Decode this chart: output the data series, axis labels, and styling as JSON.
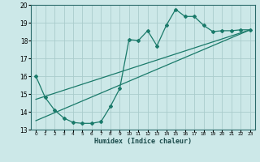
{
  "xlabel": "Humidex (Indice chaleur)",
  "ylabel": "",
  "xlim": [
    -0.5,
    23.5
  ],
  "ylim": [
    13,
    20
  ],
  "yticks": [
    13,
    14,
    15,
    16,
    17,
    18,
    19,
    20
  ],
  "xticks": [
    0,
    1,
    2,
    3,
    4,
    5,
    6,
    7,
    8,
    9,
    10,
    11,
    12,
    13,
    14,
    15,
    16,
    17,
    18,
    19,
    20,
    21,
    22,
    23
  ],
  "background_color": "#cce8e8",
  "grid_color": "#aacccc",
  "line_color": "#1a7a6a",
  "line1_x": [
    0,
    1,
    2,
    3,
    4,
    5,
    6,
    7,
    8,
    9,
    10,
    11,
    12,
    13,
    14,
    15,
    16,
    17,
    18,
    19,
    20,
    21,
    22,
    23
  ],
  "line1_y": [
    16.0,
    14.8,
    14.1,
    13.65,
    13.4,
    13.35,
    13.35,
    13.45,
    14.3,
    15.3,
    18.05,
    18.0,
    18.55,
    17.7,
    18.85,
    19.75,
    19.35,
    19.35,
    18.85,
    18.5,
    18.55,
    18.55,
    18.6,
    18.6
  ],
  "line2_x": [
    0,
    23
  ],
  "line2_y": [
    13.5,
    18.6
  ],
  "line3_x": [
    0,
    23
  ],
  "line3_y": [
    14.7,
    18.6
  ]
}
